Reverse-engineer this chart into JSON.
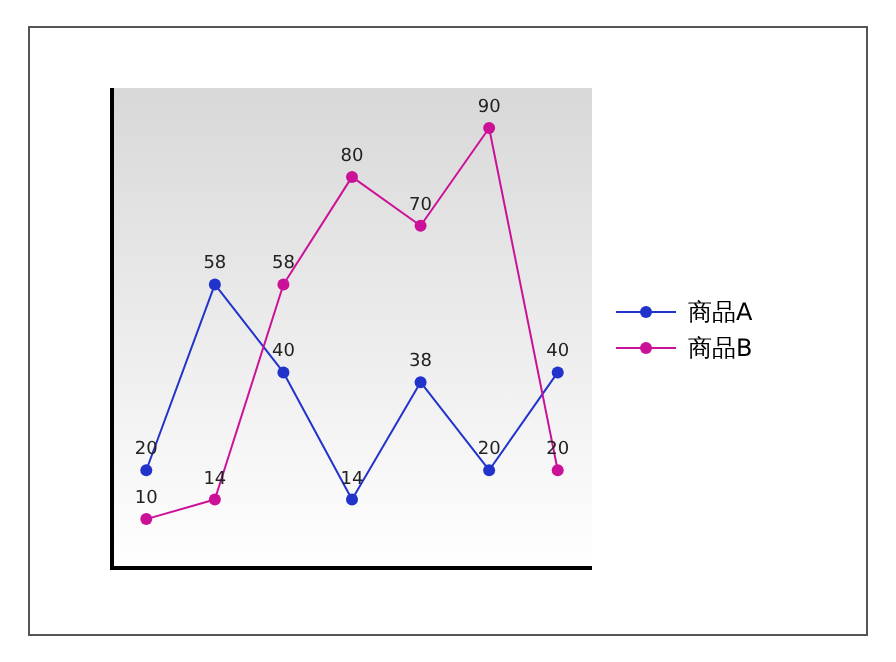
{
  "chart_data": {
    "type": "line",
    "categories": [
      null,
      null,
      null,
      null,
      null,
      null,
      null
    ],
    "series": [
      {
        "name": "商品A",
        "color": "#2233cc",
        "values": [
          20,
          58,
          40,
          14,
          38,
          20,
          40
        ]
      },
      {
        "name": "商品B",
        "color": "#cc1199",
        "values": [
          10,
          14,
          58,
          80,
          70,
          90,
          20
        ]
      }
    ],
    "data_labels": true,
    "legend": "right",
    "marker": "circle",
    "line_style": "solid"
  }
}
